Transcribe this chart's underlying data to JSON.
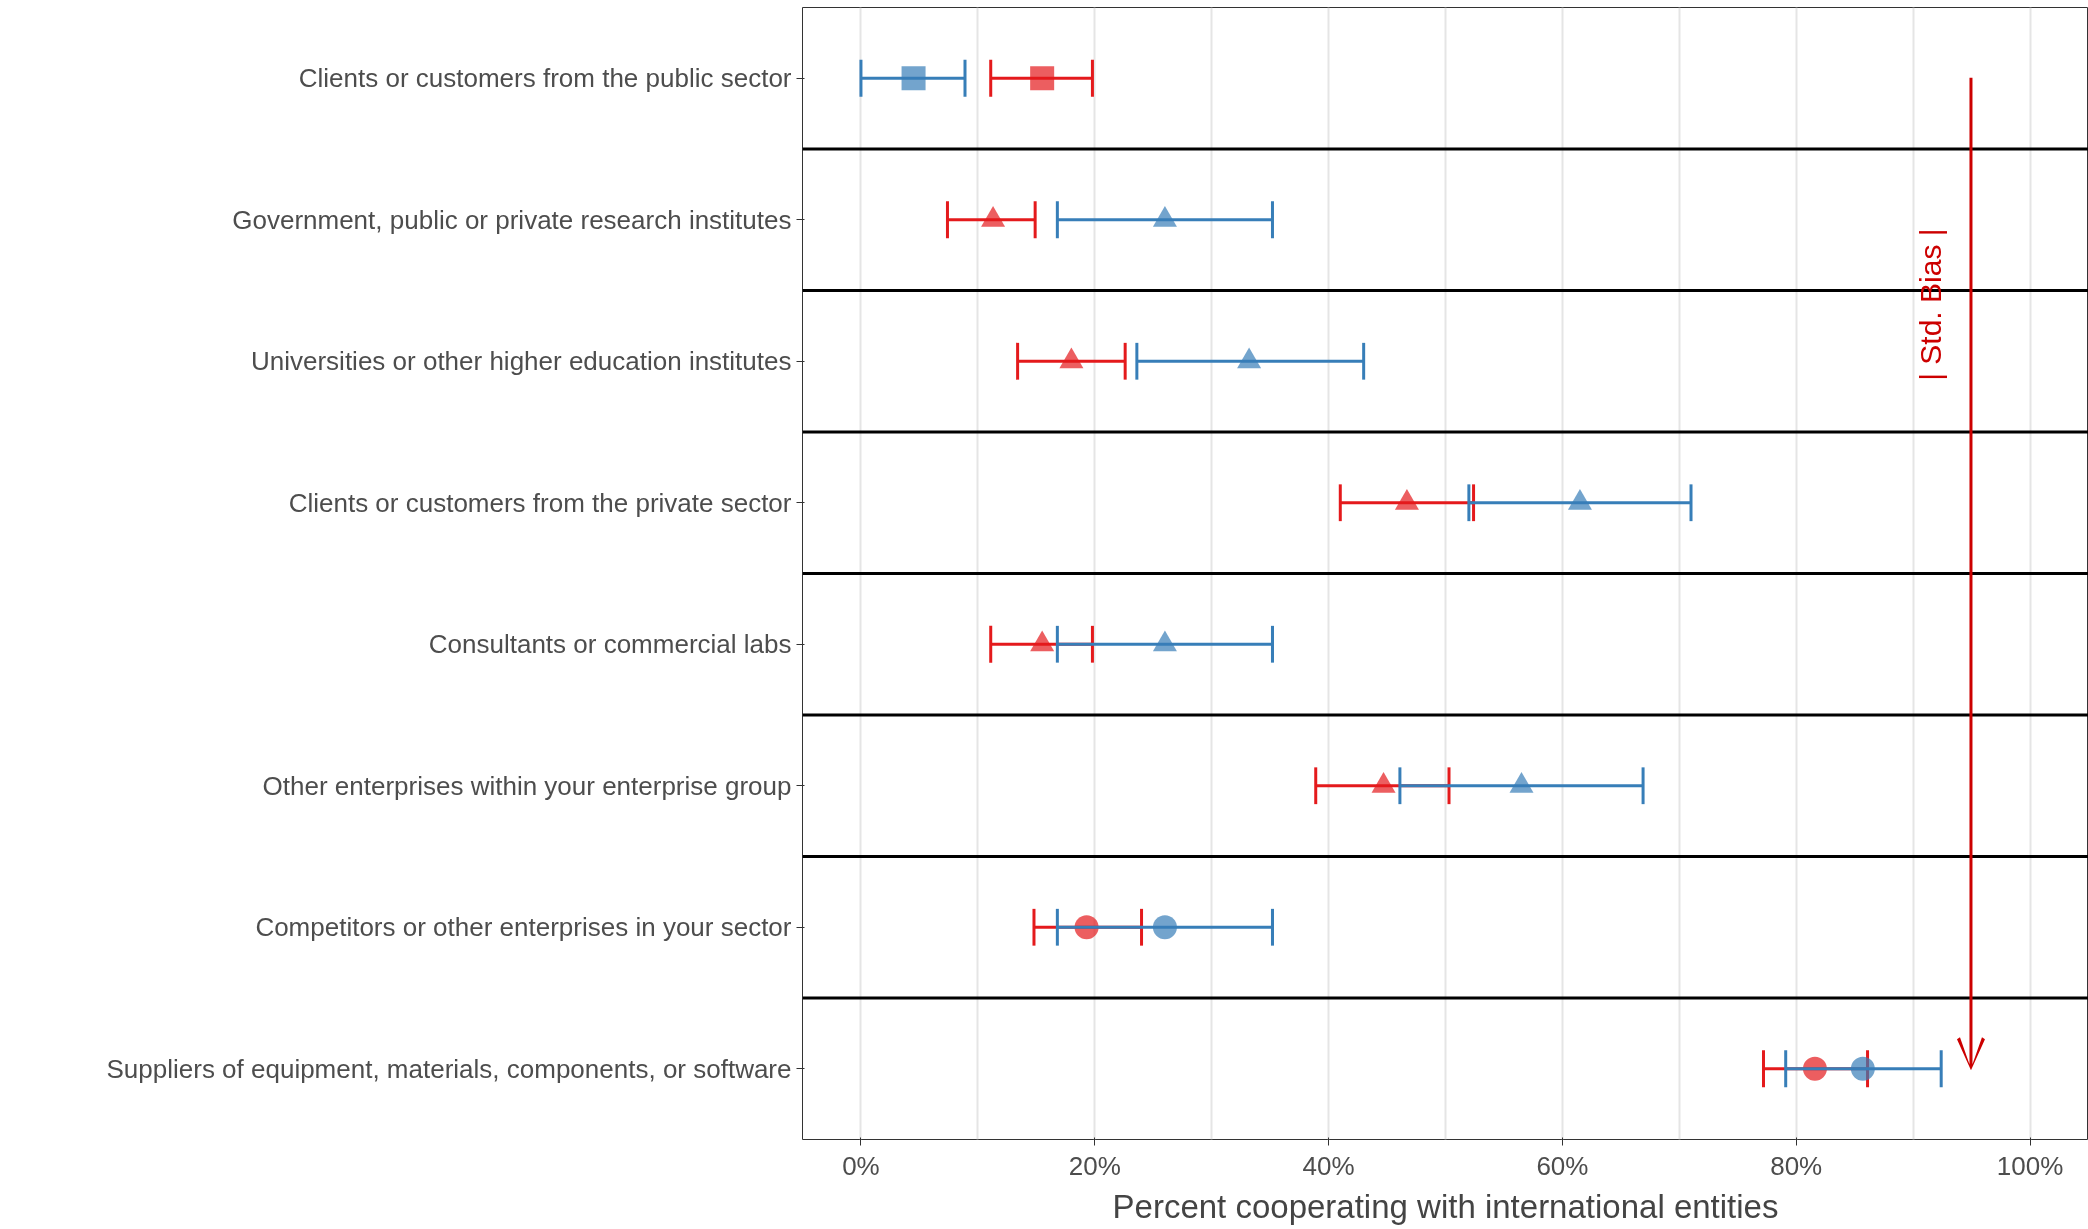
{
  "chart_data": {
    "type": "scatter",
    "orientation": "horizontal",
    "xlabel": "Percent cooperating with international entities",
    "categories": [
      "Clients or customers from the public sector",
      "Government, public or private research institutes",
      "Universities or other higher education institutes",
      "Clients or customers from the private sector",
      "Consultants or commercial labs",
      "Other enterprises within your enterprise group",
      "Competitors or other enterprises in your sector",
      "Suppliers of equipment, materials, components, or software"
    ],
    "xlim": [
      -5,
      105
    ],
    "xticks": [
      {
        "value": 0,
        "label": "0%"
      },
      {
        "value": 20,
        "label": "20%"
      },
      {
        "value": 40,
        "label": "40%"
      },
      {
        "value": 60,
        "label": "60%"
      },
      {
        "value": 80,
        "label": "80%"
      },
      {
        "value": 100,
        "label": "100%"
      }
    ],
    "grid": "x",
    "annotations": [
      "| Std. Bias |"
    ],
    "series": [
      {
        "color": "#e41a1c",
        "marker": "square",
        "values": [
          15.5,
          null,
          null,
          null,
          null,
          null,
          null,
          null
        ],
        "errors": [
          [
            11.1,
            19.8
          ],
          null,
          null,
          null,
          null,
          null,
          null,
          null
        ]
      },
      {
        "color": "#377eb8",
        "marker": "square",
        "values": [
          4.5,
          null,
          null,
          null,
          null,
          null,
          null,
          null
        ],
        "errors": [
          [
            0,
            8.9
          ],
          null,
          null,
          null,
          null,
          null,
          null,
          null
        ]
      },
      {
        "color": "#e41a1c",
        "marker": "triangle",
        "values": [
          null,
          11.3,
          18,
          46.7,
          15.5,
          44.7,
          null,
          null
        ],
        "errors": [
          null,
          [
            7.4,
            14.9
          ],
          [
            13.4,
            22.6
          ],
          [
            41,
            52.4
          ],
          [
            11.1,
            19.8
          ],
          [
            38.9,
            50.3
          ],
          null,
          null
        ]
      },
      {
        "color": "#377eb8",
        "marker": "triangle",
        "values": [
          null,
          26,
          33.2,
          61.5,
          26,
          56.5,
          null,
          null
        ],
        "errors": [
          null,
          [
            16.8,
            35.2
          ],
          [
            23.6,
            43
          ],
          [
            52,
            71
          ],
          [
            16.8,
            35.2
          ],
          [
            46.1,
            66.9
          ],
          null,
          null
        ]
      },
      {
        "color": "#e41a1c",
        "marker": "circle",
        "values": [
          null,
          null,
          null,
          null,
          null,
          null,
          19.3,
          81.6
        ],
        "errors": [
          null,
          null,
          null,
          null,
          null,
          null,
          [
            14.8,
            24
          ],
          [
            77.2,
            86.1
          ]
        ]
      },
      {
        "color": "#377eb8",
        "marker": "circle",
        "values": [
          null,
          null,
          null,
          null,
          null,
          null,
          26,
          85.7
        ],
        "errors": [
          null,
          null,
          null,
          null,
          null,
          null,
          [
            16.8,
            35.2
          ],
          [
            79.1,
            92.4
          ]
        ]
      }
    ]
  }
}
